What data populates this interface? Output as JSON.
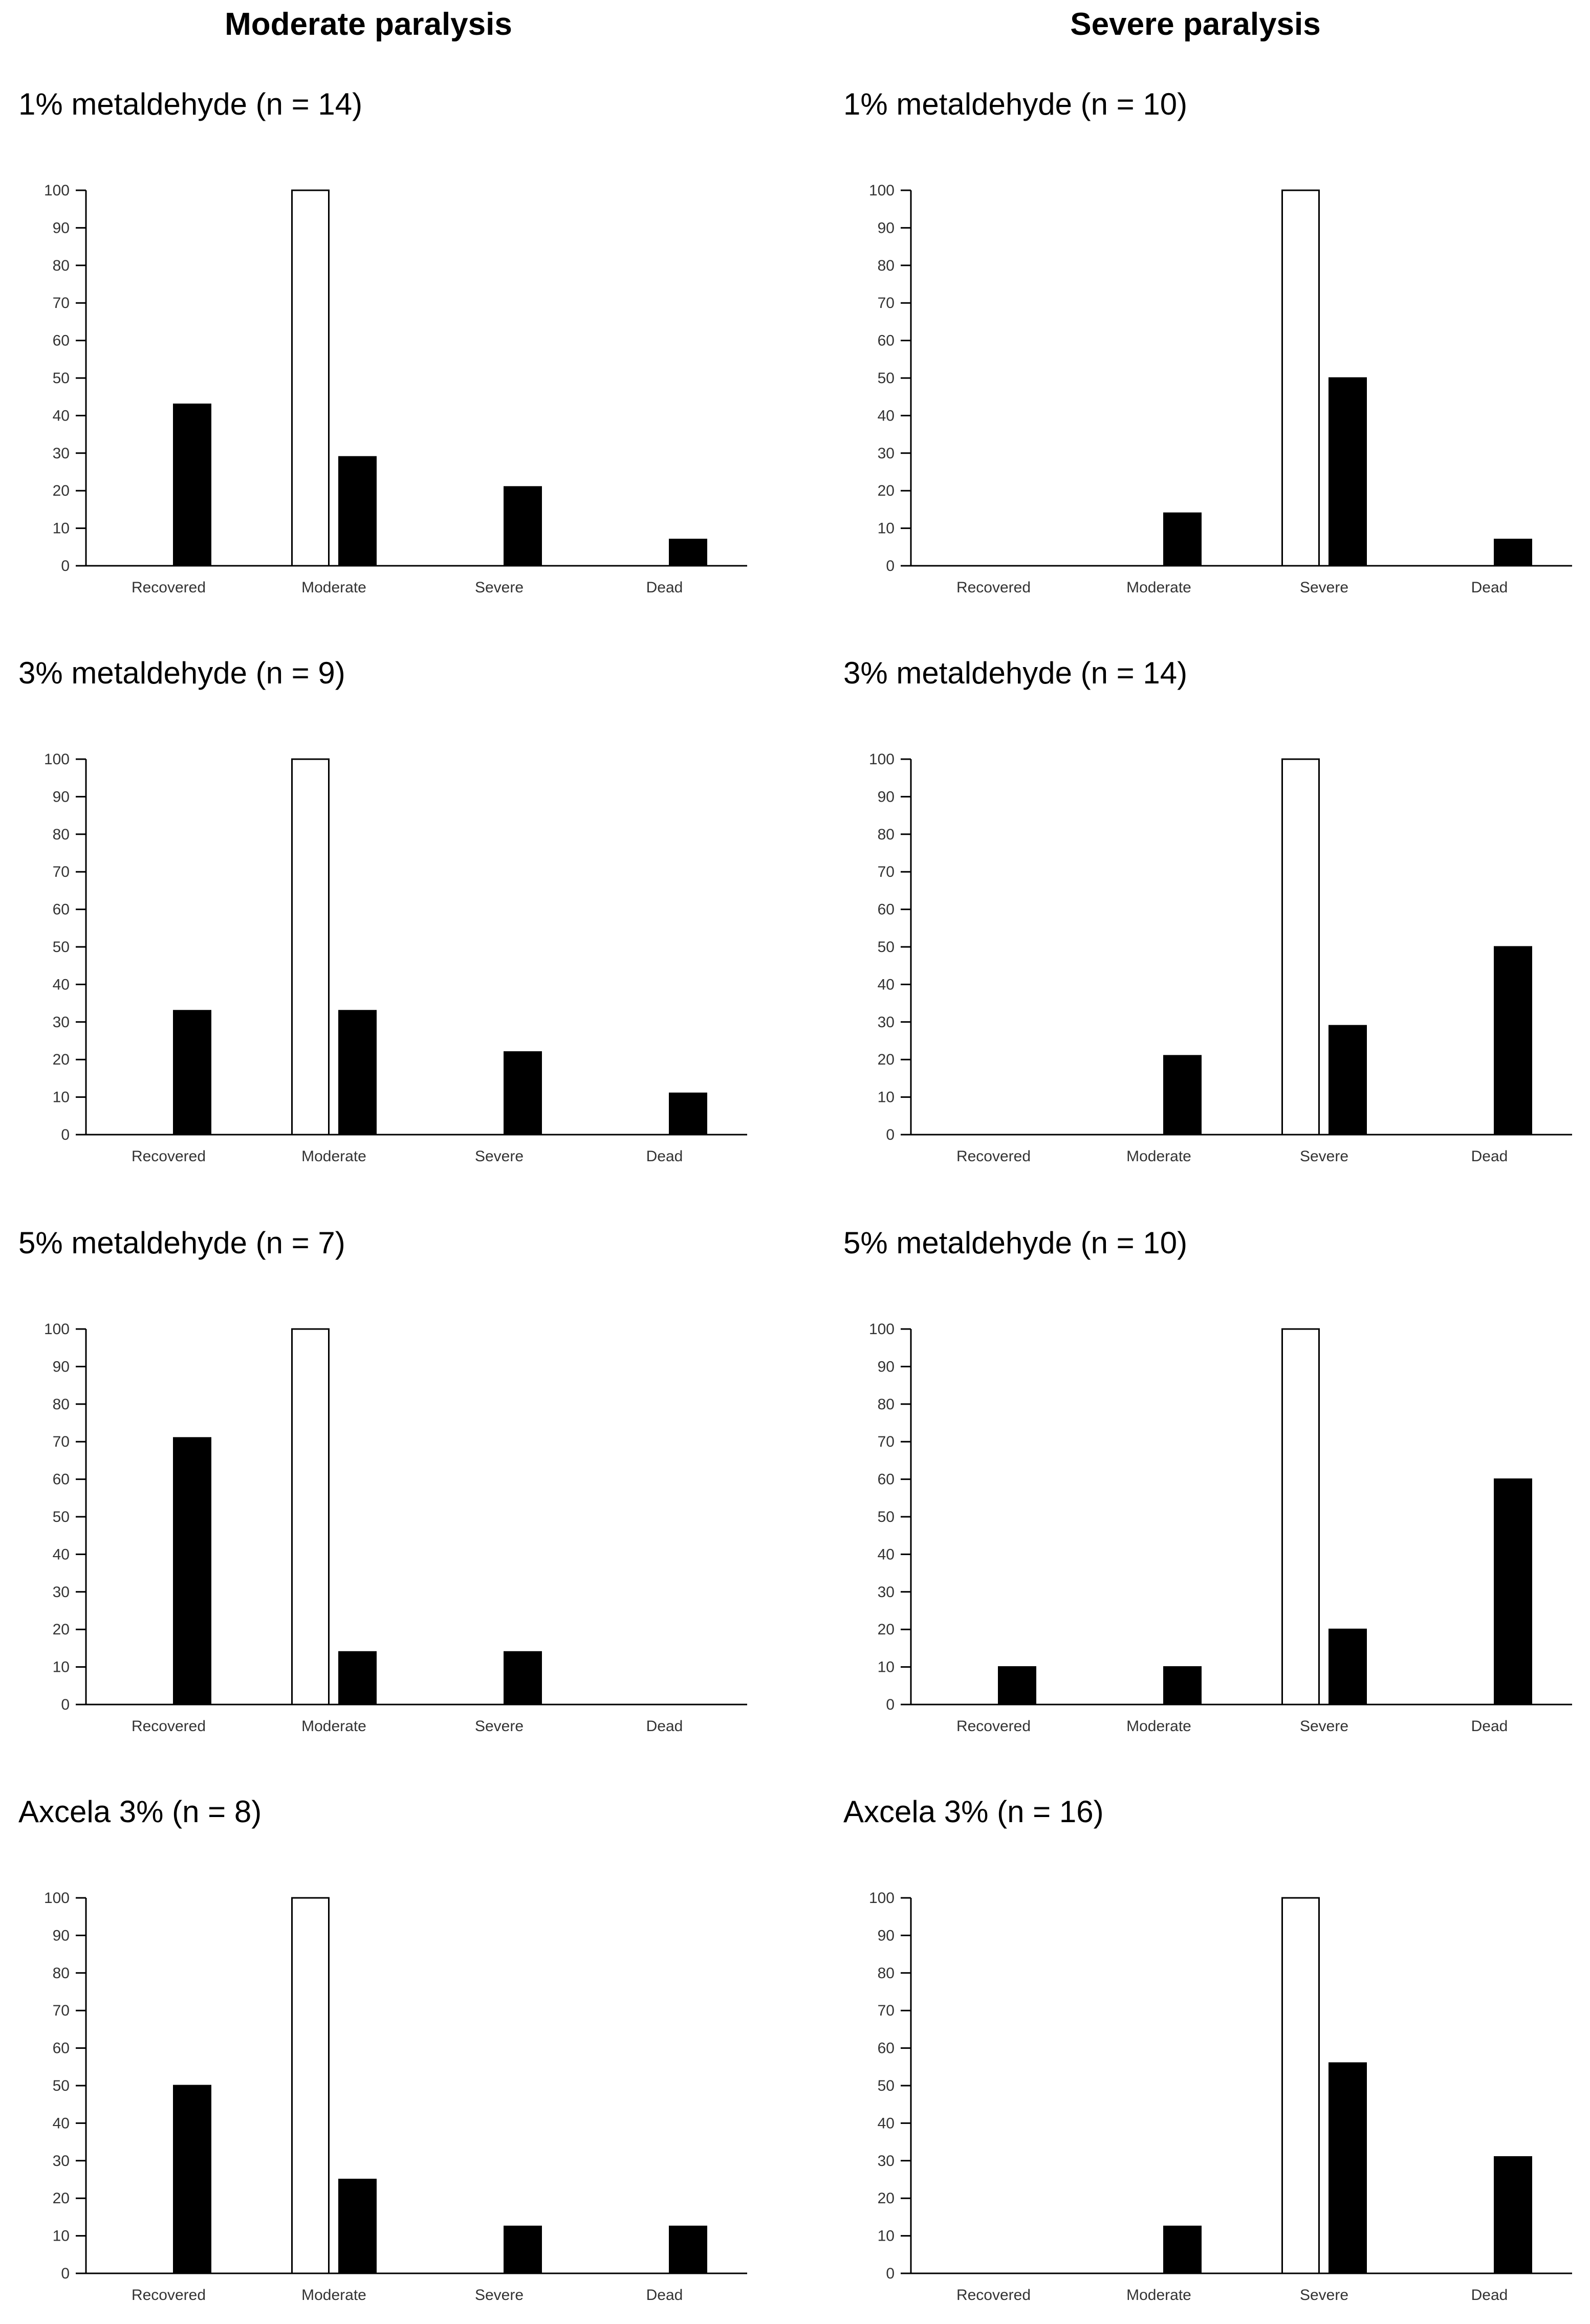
{
  "figure": {
    "column_titles": [
      "Moderate paralysis",
      "Severe paralysis"
    ]
  },
  "chart_data": [
    {
      "type": "bar",
      "panel": "Moderate paralysis",
      "title": "1% metaldehyde (n = 14)",
      "categories": [
        "Recovered",
        "Moderate",
        "Severe",
        "Dead"
      ],
      "series": [
        {
          "values": [
            0,
            100,
            0,
            0
          ],
          "color": "#ffffff"
        },
        {
          "values": [
            43,
            29,
            21,
            7
          ],
          "color": "#000000"
        }
      ],
      "yticks": [
        0,
        10,
        20,
        30,
        40,
        50,
        60,
        70,
        80,
        90,
        100
      ],
      "ylim": [
        0,
        100
      ],
      "grid": false
    },
    {
      "type": "bar",
      "panel": "Severe paralysis",
      "title": "1% metaldehyde (n = 10)",
      "categories": [
        "Recovered",
        "Moderate",
        "Severe",
        "Dead"
      ],
      "series": [
        {
          "values": [
            0,
            0,
            100,
            0
          ],
          "color": "#ffffff"
        },
        {
          "values": [
            0,
            14,
            50,
            7
          ],
          "color": "#000000"
        }
      ],
      "yticks": [
        0,
        10,
        20,
        30,
        40,
        50,
        60,
        70,
        80,
        90,
        100
      ],
      "ylim": [
        0,
        100
      ],
      "grid": false
    },
    {
      "type": "bar",
      "panel": "Moderate paralysis",
      "title": "3% metaldehyde (n = 9)",
      "categories": [
        "Recovered",
        "Moderate",
        "Severe",
        "Dead"
      ],
      "series": [
        {
          "values": [
            0,
            100,
            0,
            0
          ],
          "color": "#ffffff"
        },
        {
          "values": [
            33,
            33,
            22,
            11
          ],
          "color": "#000000"
        }
      ],
      "yticks": [
        0,
        10,
        20,
        30,
        40,
        50,
        60,
        70,
        80,
        90,
        100
      ],
      "ylim": [
        0,
        100
      ],
      "grid": false
    },
    {
      "type": "bar",
      "panel": "Severe paralysis",
      "title": "3% metaldehyde (n = 14)",
      "categories": [
        "Recovered",
        "Moderate",
        "Severe",
        "Dead"
      ],
      "series": [
        {
          "values": [
            0,
            0,
            100,
            0
          ],
          "color": "#ffffff"
        },
        {
          "values": [
            0,
            21,
            29,
            50
          ],
          "color": "#000000"
        }
      ],
      "yticks": [
        0,
        10,
        20,
        30,
        40,
        50,
        60,
        70,
        80,
        90,
        100
      ],
      "ylim": [
        0,
        100
      ],
      "grid": false
    },
    {
      "type": "bar",
      "panel": "Moderate paralysis",
      "title": "5% metaldehyde (n = 7)",
      "categories": [
        "Recovered",
        "Moderate",
        "Severe",
        "Dead"
      ],
      "series": [
        {
          "values": [
            0,
            100,
            0,
            0
          ],
          "color": "#ffffff"
        },
        {
          "values": [
            71,
            14,
            14,
            0
          ],
          "color": "#000000"
        }
      ],
      "yticks": [
        0,
        10,
        20,
        30,
        40,
        50,
        60,
        70,
        80,
        90,
        100
      ],
      "ylim": [
        0,
        100
      ],
      "grid": false
    },
    {
      "type": "bar",
      "panel": "Severe paralysis",
      "title": "5% metaldehyde (n = 10)",
      "categories": [
        "Recovered",
        "Moderate",
        "Severe",
        "Dead"
      ],
      "series": [
        {
          "values": [
            0,
            0,
            100,
            0
          ],
          "color": "#ffffff"
        },
        {
          "values": [
            10,
            10,
            20,
            60
          ],
          "color": "#000000"
        }
      ],
      "yticks": [
        0,
        10,
        20,
        30,
        40,
        50,
        60,
        70,
        80,
        90,
        100
      ],
      "ylim": [
        0,
        100
      ],
      "grid": false
    },
    {
      "type": "bar",
      "panel": "Moderate paralysis",
      "title": "Axcela 3% (n = 8)",
      "categories": [
        "Recovered",
        "Moderate",
        "Severe",
        "Dead"
      ],
      "series": [
        {
          "values": [
            0,
            100,
            0,
            0
          ],
          "color": "#ffffff"
        },
        {
          "values": [
            50,
            25,
            12.5,
            12.5
          ],
          "color": "#000000"
        }
      ],
      "yticks": [
        0,
        10,
        20,
        30,
        40,
        50,
        60,
        70,
        80,
        90,
        100
      ],
      "ylim": [
        0,
        100
      ],
      "grid": false
    },
    {
      "type": "bar",
      "panel": "Severe paralysis",
      "title": "Axcela 3% (n = 16)",
      "categories": [
        "Recovered",
        "Moderate",
        "Severe",
        "Dead"
      ],
      "series": [
        {
          "values": [
            0,
            0,
            100,
            0
          ],
          "color": "#ffffff"
        },
        {
          "values": [
            0,
            12.5,
            56,
            31
          ],
          "color": "#000000"
        }
      ],
      "yticks": [
        0,
        10,
        20,
        30,
        40,
        50,
        60,
        70,
        80,
        90,
        100
      ],
      "ylim": [
        0,
        100
      ],
      "grid": false
    }
  ]
}
